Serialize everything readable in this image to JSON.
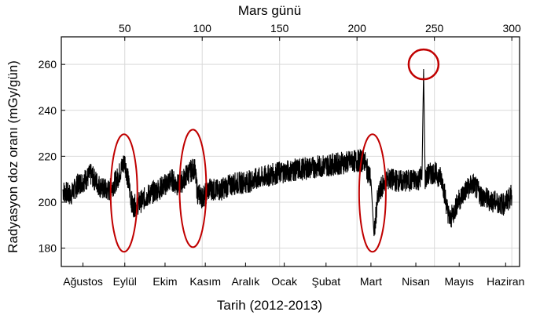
{
  "chart_data": {
    "type": "line",
    "title": "",
    "xlabel": "Tarih (2012-2013)",
    "x2label": "Mars günü",
    "ylabel": "Radyasyon doz oranı (mGy/gün)",
    "ylim": [
      172,
      272
    ],
    "xlim": [
      9,
      305
    ],
    "yticks": [
      180,
      200,
      220,
      240,
      260
    ],
    "x2ticks": [
      50,
      100,
      150,
      200,
      250,
      300
    ],
    "months": [
      "Ağustos",
      "Eylül",
      "Ekim",
      "Kasım",
      "Aralık",
      "Ocak",
      "Şubat",
      "Mart",
      "Nisan",
      "Mayıs",
      "Haziran"
    ],
    "month_sols": [
      23,
      50,
      76,
      102,
      128,
      153,
      180,
      209,
      238,
      266,
      296
    ],
    "grid": true,
    "legend": "none",
    "series": [
      {
        "color": "#000000",
        "sol": [
          10,
          15,
          20,
          25,
          28,
          35,
          40,
          45,
          48,
          50,
          52,
          55,
          60,
          65,
          70,
          75,
          80,
          85,
          90,
          95,
          97,
          100,
          105,
          110,
          120,
          130,
          140,
          150,
          160,
          170,
          180,
          190,
          200,
          205,
          206,
          209,
          211,
          213,
          215,
          217,
          220,
          230,
          240,
          242,
          243,
          244,
          246,
          250,
          255,
          258,
          260,
          262,
          265,
          270,
          275,
          280,
          285,
          290,
          295,
          300
        ],
        "dose": [
          205,
          203,
          208,
          210,
          212,
          206,
          205,
          210,
          215,
          218,
          210,
          198,
          200,
          203,
          205,
          207,
          210,
          207,
          212,
          215,
          204,
          202,
          206,
          205,
          208,
          209,
          211,
          213,
          214,
          215,
          216,
          217,
          218,
          218,
          215,
          210,
          185,
          200,
          205,
          208,
          210,
          209,
          210,
          212,
          258,
          210,
          212,
          213,
          210,
          198,
          192,
          195,
          200,
          205,
          208,
          203,
          201,
          200,
          199,
          203
        ]
      }
    ],
    "noise_amplitude": 5,
    "annotations": [
      {
        "shape": "ellipse",
        "sol": 49.5,
        "dose": 204,
        "color": "#c00000"
      },
      {
        "shape": "ellipse",
        "sol": 94,
        "dose": 206,
        "color": "#c00000"
      },
      {
        "shape": "ellipse",
        "sol": 210,
        "dose": 204,
        "color": "#c00000"
      },
      {
        "shape": "circle",
        "sol": 243,
        "dose": 260,
        "color": "#c00000"
      }
    ]
  }
}
